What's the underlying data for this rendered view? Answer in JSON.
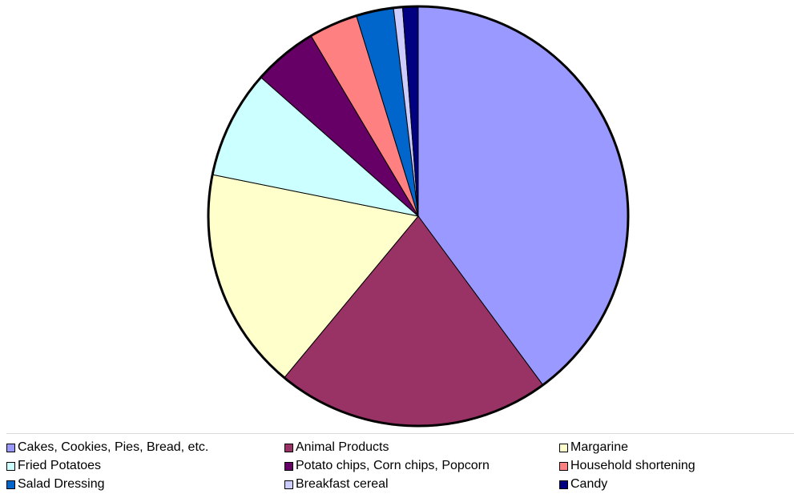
{
  "chart_data": {
    "type": "pie",
    "title": "",
    "start_angle_deg": 0,
    "direction": "clockwise",
    "slices": [
      {
        "label": "Cakes, Cookies, Pies, Bread, etc.",
        "value": 40.2,
        "color": "#9999ff"
      },
      {
        "label": "Animal Products",
        "value": 21.3,
        "color": "#993366"
      },
      {
        "label": "Margarine",
        "value": 17.3,
        "color": "#ffffcc"
      },
      {
        "label": "Fried Potatoes",
        "value": 8.4,
        "color": "#ccffff"
      },
      {
        "label": "Potato chips, Corn chips, Popcorn",
        "value": 5.0,
        "color": "#660066"
      },
      {
        "label": "Household shortening",
        "value": 3.8,
        "color": "#ff8080"
      },
      {
        "label": "Salad Dressing",
        "value": 2.9,
        "color": "#0066cc"
      },
      {
        "label": "Breakfast cereal",
        "value": 0.7,
        "color": "#ccccff"
      },
      {
        "label": "Candy",
        "value": 1.2,
        "color": "#000080"
      }
    ],
    "legend_position": "bottom"
  }
}
